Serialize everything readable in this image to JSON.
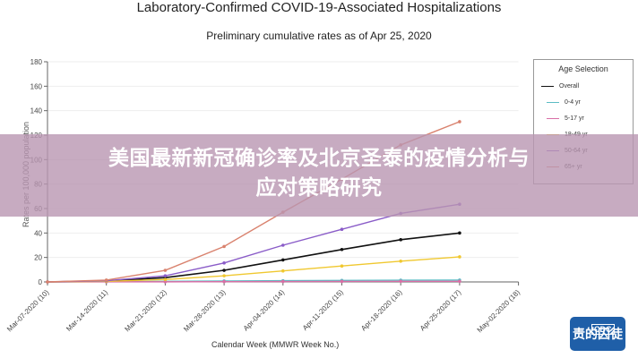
{
  "chart_data": {
    "type": "line",
    "title": "Laboratory-Confirmed COVID-19-Associated Hospitalizations",
    "subtitle": "Preliminary cumulative rates as of Apr 25, 2020",
    "xlabel": "Calendar Week (MMWR Week No.)",
    "ylabel": "Rates per 100,000 population",
    "ylim": [
      0,
      180
    ],
    "yticks": [
      0,
      20,
      40,
      60,
      80,
      100,
      120,
      140,
      160,
      180
    ],
    "grid": true,
    "legend_position": "right",
    "legend_title": "Age Selection",
    "categories": [
      "Mar-07-2020 (10)",
      "Mar-14-2020 (11)",
      "Mar-21-2020 (12)",
      "Mar-28-2020 (13)",
      "Apr-04-2020 (14)",
      "Apr-11-2020 (15)",
      "Apr-18-2020 (16)",
      "Apr-25-2020 (17)",
      "May-02-2020 (18)"
    ],
    "series": [
      {
        "name": "Overall",
        "color": "#111111",
        "values": [
          0,
          0.8,
          3.5,
          9.5,
          18,
          26.5,
          34.5,
          40,
          null
        ]
      },
      {
        "name": "0-4 yr",
        "color": "#5bbcc4",
        "values": [
          0,
          0.2,
          0.5,
          0.8,
          1.0,
          1.2,
          1.4,
          1.5,
          null
        ]
      },
      {
        "name": "5-17 yr",
        "color": "#d96fa6",
        "values": [
          0,
          0.1,
          0.1,
          0.2,
          0.3,
          0.4,
          0.5,
          0.5,
          null
        ]
      },
      {
        "name": "18-49 yr",
        "color": "#f0c830",
        "values": [
          0,
          0.5,
          2,
          5,
          9,
          13,
          17,
          20.5,
          null
        ]
      },
      {
        "name": "50-64 yr",
        "color": "#8a5cc8",
        "values": [
          0,
          1,
          5,
          15.5,
          30,
          43,
          56,
          63.5,
          null
        ]
      },
      {
        "name": "65+ yr",
        "color": "#d9826e",
        "values": [
          0,
          1.5,
          9.5,
          29,
          57,
          84,
          112,
          131,
          null
        ]
      }
    ]
  },
  "legend": {
    "title": "Age Selection",
    "items": [
      {
        "label": "Overall",
        "color": "#111111"
      },
      {
        "label": "0-4 yr",
        "color": "#5bbcc4"
      },
      {
        "label": "5-17 yr",
        "color": "#d96fa6"
      },
      {
        "label": "18-49 yr",
        "color": "#f0c830"
      },
      {
        "label": "50-64 yr",
        "color": "#8a5cc8"
      },
      {
        "label": "65+ yr",
        "color": "#d9826e"
      }
    ]
  },
  "overlay": {
    "headline_line1": "美国最新新冠确诊率及北京圣泰的疫情分析与",
    "headline_line2": "应对策略研究"
  },
  "logo": {
    "text": "CDC",
    "watermark": "责的囚徒"
  }
}
